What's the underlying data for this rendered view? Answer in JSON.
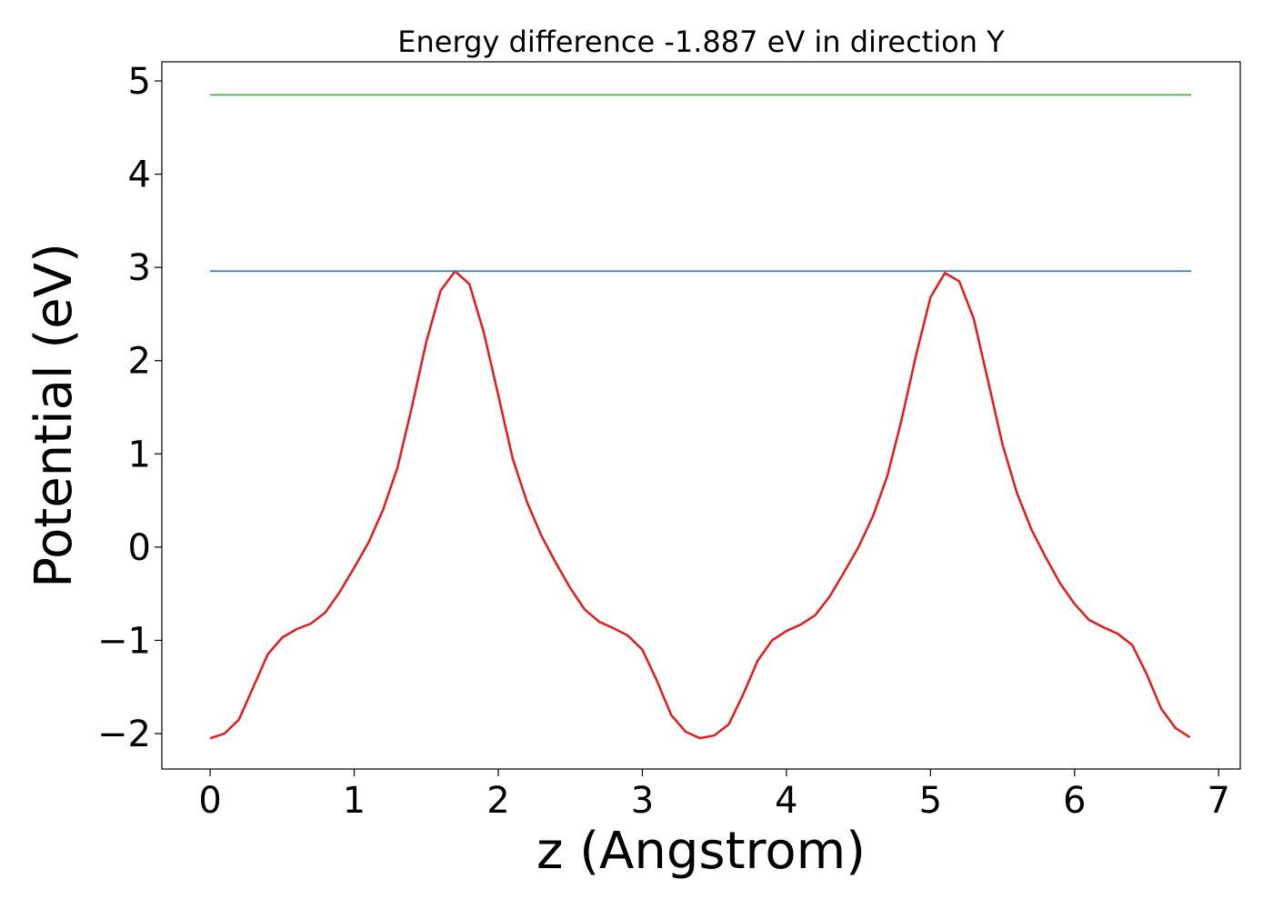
{
  "chart_data": {
    "type": "line",
    "title": "Energy difference -1.887 eV in direction Y",
    "x_label": "z (Angstrom)",
    "y_label": "Potential (eV)",
    "xlim": [
      -0.335,
      7.15
    ],
    "ylim": [
      -2.38,
      5.205
    ],
    "xticks": [
      0,
      1,
      2,
      3,
      4,
      5,
      6,
      7
    ],
    "yticks": [
      {
        "value": -2,
        "label": "−2"
      },
      {
        "value": -1,
        "label": "−1"
      },
      0,
      1,
      2,
      3,
      4,
      5
    ],
    "grid": false,
    "series": [
      {
        "color": "#e41a1c",
        "x": [
          0,
          0.1,
          0.2,
          0.3,
          0.4,
          0.5,
          0.6,
          0.7,
          0.8,
          0.9,
          1.0,
          1.1,
          1.2,
          1.3,
          1.4,
          1.5,
          1.6,
          1.7,
          1.8,
          1.9,
          2.0,
          2.1,
          2.2,
          2.3,
          2.4,
          2.5,
          2.6,
          2.7,
          2.8,
          2.9,
          3.0,
          3.1,
          3.2,
          3.3,
          3.4,
          3.5,
          3.6,
          3.7,
          3.8,
          3.9,
          4.0,
          4.1,
          4.2,
          4.3,
          4.4,
          4.5,
          4.6,
          4.7,
          4.8,
          4.9,
          5.0,
          5.1,
          5.2,
          5.3,
          5.4,
          5.5,
          5.6,
          5.7,
          5.8,
          5.9,
          6.0,
          6.1,
          6.2,
          6.3,
          6.4,
          6.5,
          6.6,
          6.7,
          6.8
        ],
        "values": [
          -2.05,
          -2.0,
          -1.85,
          -1.5,
          -1.15,
          -0.97,
          -0.88,
          -0.82,
          -0.7,
          -0.48,
          -0.22,
          0.05,
          0.4,
          0.85,
          1.5,
          2.2,
          2.75,
          2.96,
          2.82,
          2.3,
          1.63,
          0.95,
          0.48,
          0.12,
          -0.17,
          -0.44,
          -0.67,
          -0.8,
          -0.87,
          -0.95,
          -1.1,
          -1.43,
          -1.8,
          -1.98,
          -2.05,
          -2.02,
          -1.9,
          -1.58,
          -1.22,
          -1.0,
          -0.9,
          -0.83,
          -0.73,
          -0.53,
          -0.27,
          0.0,
          0.33,
          0.76,
          1.37,
          2.06,
          2.68,
          2.94,
          2.85,
          2.45,
          1.78,
          1.1,
          0.58,
          0.19,
          -0.11,
          -0.39,
          -0.61,
          -0.78,
          -0.86,
          -0.93,
          -1.05,
          -1.36,
          -1.73,
          -1.94,
          -2.04
        ]
      },
      {
        "color": "#377eb8",
        "x": [
          0,
          6.81
        ],
        "values": [
          2.96,
          2.96
        ]
      },
      {
        "color": "#4daf4a",
        "x": [
          0,
          6.81
        ],
        "values": [
          4.85,
          4.85
        ]
      }
    ]
  }
}
